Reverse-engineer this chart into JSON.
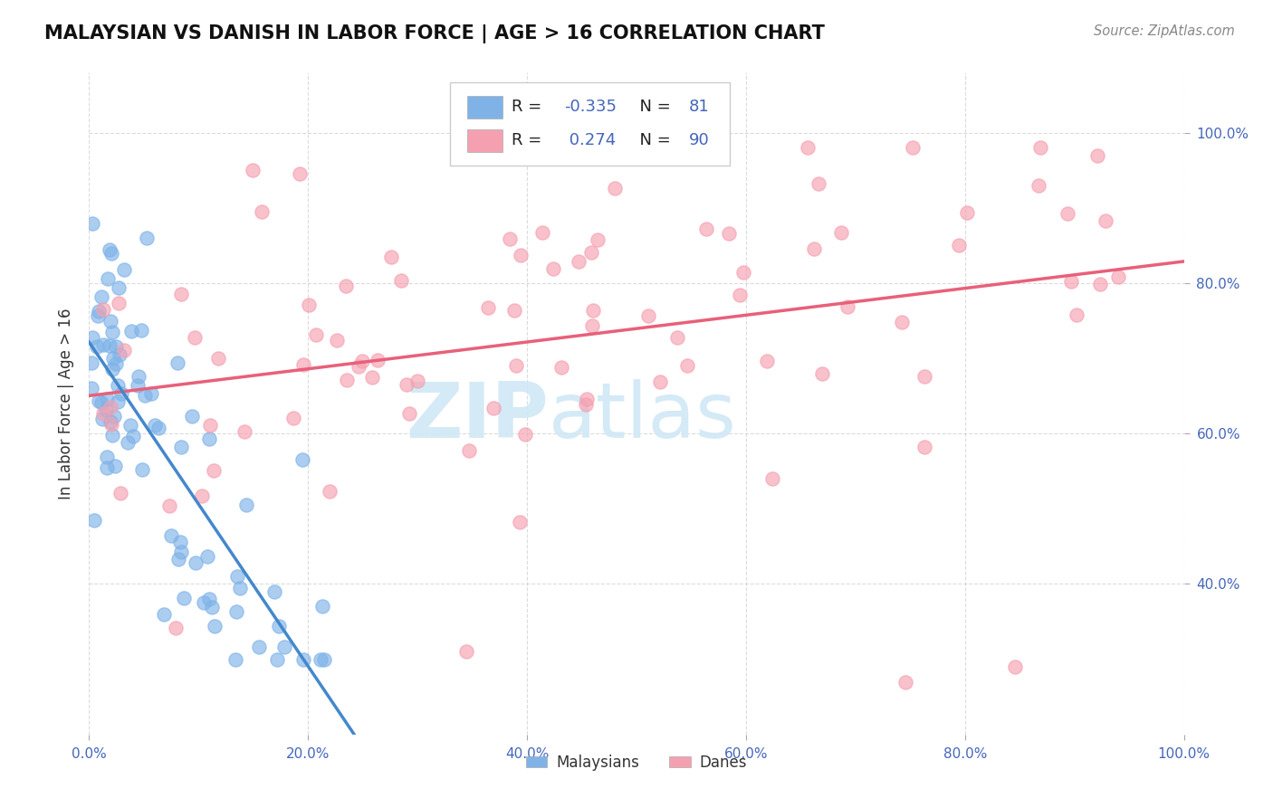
{
  "title": "MALAYSIAN VS DANISH IN LABOR FORCE | AGE > 16 CORRELATION CHART",
  "source": "Source: ZipAtlas.com",
  "ylabel": "In Labor Force | Age > 16",
  "xmin": 0.0,
  "xmax": 1.0,
  "ymin": 0.2,
  "ymax": 1.08,
  "malaysian_R": -0.335,
  "malaysian_N": 81,
  "danish_R": 0.274,
  "danish_N": 90,
  "xtick_labels": [
    "0.0%",
    "20.0%",
    "40.0%",
    "60.0%",
    "80.0%",
    "100.0%"
  ],
  "ytick_labels": [
    "40.0%",
    "60.0%",
    "80.0%",
    "100.0%"
  ],
  "ytick_positions": [
    0.4,
    0.6,
    0.8,
    1.0
  ],
  "xtick_positions": [
    0.0,
    0.2,
    0.4,
    0.6,
    0.8,
    1.0
  ],
  "color_malaysian": "#7fb3e8",
  "color_danish": "#f5a0b0",
  "trendline_malaysian_solid": "#4488cc",
  "trendline_danish_solid": "#e8607a",
  "trendline_dashed_color": "#aaccee",
  "background_color": "#ffffff",
  "grid_color": "#cccccc",
  "watermark_zip": "ZIP",
  "watermark_atlas": "atlas",
  "watermark_color": "#d0e8f5",
  "legend_box_color": "#ffffff",
  "legend_border_color": "#cccccc",
  "tick_color": "#4466bb",
  "title_color": "#111111",
  "source_color": "#888888",
  "ylabel_color": "#333333"
}
